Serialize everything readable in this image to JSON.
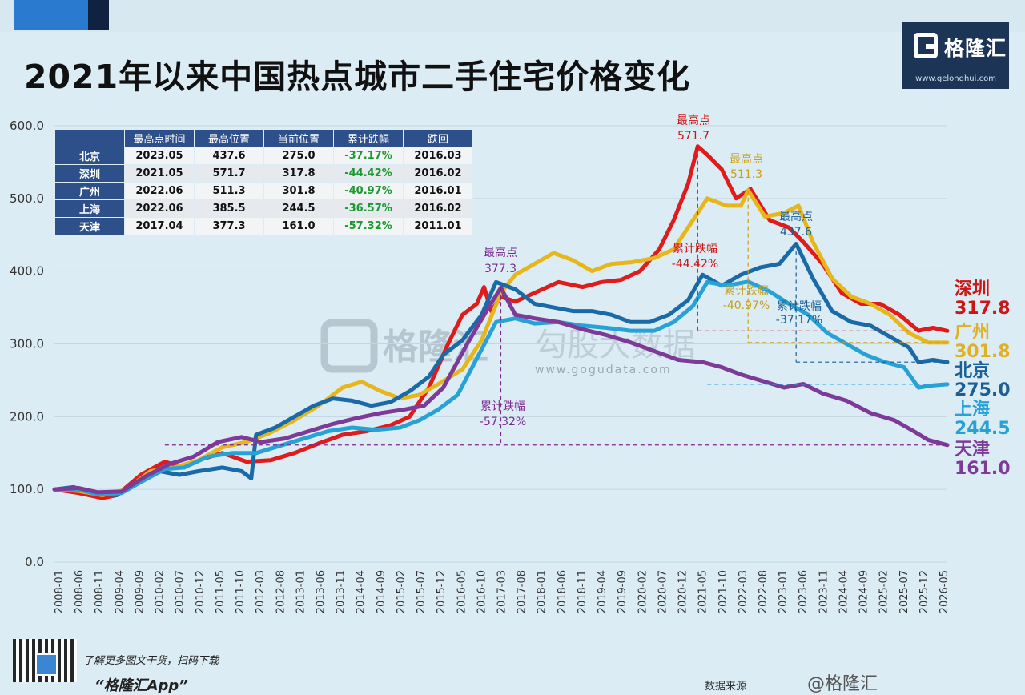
{
  "title": "2021年以来中国热点城市二手住宅价格变化",
  "logo": {
    "name": "格隆汇",
    "url": "www.gelonghui.com"
  },
  "watermark": {
    "text": "格隆汇",
    "sub": "勾股大数据",
    "url": "www.gogudata.com"
  },
  "footer": {
    "line1": "了解更多图文干货，扫码下载",
    "line2": "“格隆汇App”",
    "source": "数据来源",
    "handle": "@格隆汇"
  },
  "table": {
    "headers": [
      "",
      "最高点时间",
      "最高位置",
      "当前位置",
      "累计跌幅",
      "跌回"
    ],
    "rows": [
      [
        "北京",
        "2023.05",
        "437.6",
        "275.0",
        "-37.17%",
        "2016.03"
      ],
      [
        "深圳",
        "2021.05",
        "571.7",
        "317.8",
        "-44.42%",
        "2016.02"
      ],
      [
        "广州",
        "2022.06",
        "511.3",
        "301.8",
        "-40.97%",
        "2016.01"
      ],
      [
        "上海",
        "2022.06",
        "385.5",
        "244.5",
        "-36.57%",
        "2016.02"
      ],
      [
        "天津",
        "2017.04",
        "377.3",
        "161.0",
        "-57.32%",
        "2011.01"
      ]
    ]
  },
  "chart_data": {
    "type": "line",
    "ylim": [
      0,
      600
    ],
    "yticks": [
      "0.0",
      "100.0",
      "200.0",
      "300.0",
      "400.0",
      "500.0",
      "600.0"
    ],
    "xticks": [
      "2008-01",
      "2008-06",
      "2008-11",
      "2009-04",
      "2009-09",
      "2010-02",
      "2010-07",
      "2010-12",
      "2011-05",
      "2011-10",
      "2012-03",
      "2012-08",
      "2013-01",
      "2013-06",
      "2013-11",
      "2014-04",
      "2014-09",
      "2015-02",
      "2015-07",
      "2015-12",
      "2016-05",
      "2016-10",
      "2017-03",
      "2017-08",
      "2018-01",
      "2018-06",
      "2018-11",
      "2019-04",
      "2019-09",
      "2020-02",
      "2020-07",
      "2020-12",
      "2021-05",
      "2021-10",
      "2022-03",
      "2022-08",
      "2023-01",
      "2023-06",
      "2023-11",
      "2024-04",
      "2024-09",
      "2025-02",
      "2025-07",
      "2025-12",
      "2026-05"
    ],
    "series": [
      {
        "name": "深圳",
        "value_label": "317.8",
        "color": "#e01b1b",
        "points": [
          [
            2008.0,
            100
          ],
          [
            2008.5,
            95
          ],
          [
            2009.0,
            88
          ],
          [
            2009.3,
            92
          ],
          [
            2009.8,
            120
          ],
          [
            2010.3,
            138
          ],
          [
            2010.7,
            130
          ],
          [
            2011.0,
            140
          ],
          [
            2011.5,
            150
          ],
          [
            2012.0,
            138
          ],
          [
            2012.5,
            140
          ],
          [
            2013.0,
            150
          ],
          [
            2013.5,
            163
          ],
          [
            2014.0,
            175
          ],
          [
            2014.5,
            180
          ],
          [
            2015.0,
            188
          ],
          [
            2015.4,
            200
          ],
          [
            2015.8,
            240
          ],
          [
            2016.2,
            300
          ],
          [
            2016.5,
            340
          ],
          [
            2016.8,
            355
          ],
          [
            2016.95,
            378
          ],
          [
            2017.1,
            345
          ],
          [
            2017.3,
            365
          ],
          [
            2017.6,
            358
          ],
          [
            2018.0,
            370
          ],
          [
            2018.5,
            385
          ],
          [
            2019.0,
            378
          ],
          [
            2019.4,
            385
          ],
          [
            2019.8,
            388
          ],
          [
            2020.2,
            400
          ],
          [
            2020.6,
            430
          ],
          [
            2020.9,
            470
          ],
          [
            2021.2,
            520
          ],
          [
            2021.4,
            571.7
          ],
          [
            2021.6,
            560
          ],
          [
            2021.9,
            540
          ],
          [
            2022.2,
            500
          ],
          [
            2022.5,
            513
          ],
          [
            2022.9,
            470
          ],
          [
            2023.3,
            460
          ],
          [
            2023.6,
            440
          ],
          [
            2024.0,
            410
          ],
          [
            2024.4,
            370
          ],
          [
            2024.8,
            355
          ],
          [
            2025.2,
            355
          ],
          [
            2025.6,
            340
          ],
          [
            2026.0,
            318
          ],
          [
            2026.3,
            322
          ],
          [
            2026.6,
            317.8
          ]
        ]
      },
      {
        "name": "广州",
        "value_label": "301.8",
        "color": "#e6b61a",
        "points": [
          [
            2008.0,
            100
          ],
          [
            2008.5,
            98
          ],
          [
            2009.0,
            92
          ],
          [
            2009.5,
            100
          ],
          [
            2010.0,
            125
          ],
          [
            2010.5,
            130
          ],
          [
            2011.0,
            140
          ],
          [
            2011.5,
            158
          ],
          [
            2012.0,
            165
          ],
          [
            2012.5,
            178
          ],
          [
            2013.0,
            195
          ],
          [
            2013.5,
            215
          ],
          [
            2014.0,
            240
          ],
          [
            2014.4,
            248
          ],
          [
            2014.8,
            235
          ],
          [
            2015.2,
            225
          ],
          [
            2015.6,
            230
          ],
          [
            2016.0,
            245
          ],
          [
            2016.5,
            265
          ],
          [
            2016.9,
            305
          ],
          [
            2017.3,
            370
          ],
          [
            2017.6,
            395
          ],
          [
            2018.0,
            410
          ],
          [
            2018.4,
            425
          ],
          [
            2018.8,
            415
          ],
          [
            2019.2,
            400
          ],
          [
            2019.6,
            410
          ],
          [
            2020.0,
            412
          ],
          [
            2020.5,
            418
          ],
          [
            2020.9,
            430
          ],
          [
            2021.3,
            470
          ],
          [
            2021.6,
            500
          ],
          [
            2022.0,
            490
          ],
          [
            2022.3,
            490
          ],
          [
            2022.45,
            511.3
          ],
          [
            2022.8,
            475
          ],
          [
            2023.2,
            480
          ],
          [
            2023.5,
            490
          ],
          [
            2023.8,
            440
          ],
          [
            2024.2,
            390
          ],
          [
            2024.6,
            365
          ],
          [
            2025.0,
            355
          ],
          [
            2025.4,
            340
          ],
          [
            2025.8,
            315
          ],
          [
            2026.2,
            302
          ],
          [
            2026.6,
            301.8
          ]
        ]
      },
      {
        "name": "北京",
        "value_label": "275.0",
        "color": "#1a6aa8",
        "points": [
          [
            2008.0,
            100
          ],
          [
            2008.4,
            103
          ],
          [
            2008.8,
            95
          ],
          [
            2009.3,
            92
          ],
          [
            2009.7,
            110
          ],
          [
            2010.2,
            125
          ],
          [
            2010.6,
            120
          ],
          [
            2011.0,
            125
          ],
          [
            2011.5,
            130
          ],
          [
            2011.9,
            125
          ],
          [
            2012.1,
            115
          ],
          [
            2012.2,
            175
          ],
          [
            2012.6,
            185
          ],
          [
            2013.0,
            200
          ],
          [
            2013.4,
            215
          ],
          [
            2013.8,
            225
          ],
          [
            2014.2,
            222
          ],
          [
            2014.6,
            215
          ],
          [
            2015.0,
            220
          ],
          [
            2015.4,
            235
          ],
          [
            2015.8,
            255
          ],
          [
            2016.1,
            285
          ],
          [
            2016.5,
            305
          ],
          [
            2016.9,
            340
          ],
          [
            2017.2,
            385
          ],
          [
            2017.6,
            375
          ],
          [
            2018.0,
            355
          ],
          [
            2018.4,
            350
          ],
          [
            2018.8,
            345
          ],
          [
            2019.2,
            345
          ],
          [
            2019.6,
            340
          ],
          [
            2020.0,
            330
          ],
          [
            2020.4,
            330
          ],
          [
            2020.8,
            340
          ],
          [
            2021.2,
            360
          ],
          [
            2021.5,
            395
          ],
          [
            2021.9,
            380
          ],
          [
            2022.3,
            395
          ],
          [
            2022.7,
            405
          ],
          [
            2023.1,
            410
          ],
          [
            2023.45,
            437.6
          ],
          [
            2023.8,
            390
          ],
          [
            2024.2,
            345
          ],
          [
            2024.6,
            330
          ],
          [
            2025.0,
            325
          ],
          [
            2025.4,
            310
          ],
          [
            2025.8,
            295
          ],
          [
            2026.0,
            275
          ],
          [
            2026.3,
            278
          ],
          [
            2026.6,
            275.0
          ]
        ]
      },
      {
        "name": "上海",
        "value_label": "244.5",
        "color": "#27a2d6",
        "points": [
          [
            2008.0,
            100
          ],
          [
            2008.5,
            100
          ],
          [
            2008.9,
            93
          ],
          [
            2009.4,
            95
          ],
          [
            2009.8,
            110
          ],
          [
            2010.3,
            128
          ],
          [
            2010.7,
            130
          ],
          [
            2011.2,
            145
          ],
          [
            2011.7,
            150
          ],
          [
            2012.2,
            150
          ],
          [
            2012.7,
            160
          ],
          [
            2013.2,
            170
          ],
          [
            2013.7,
            180
          ],
          [
            2014.2,
            185
          ],
          [
            2014.7,
            182
          ],
          [
            2015.2,
            185
          ],
          [
            2015.6,
            195
          ],
          [
            2016.0,
            210
          ],
          [
            2016.4,
            230
          ],
          [
            2016.8,
            280
          ],
          [
            2017.2,
            330
          ],
          [
            2017.6,
            335
          ],
          [
            2018.0,
            328
          ],
          [
            2018.5,
            330
          ],
          [
            2019.0,
            325
          ],
          [
            2019.5,
            322
          ],
          [
            2020.0,
            318
          ],
          [
            2020.5,
            318
          ],
          [
            2020.9,
            330
          ],
          [
            2021.3,
            352
          ],
          [
            2021.6,
            385
          ],
          [
            2022.0,
            380
          ],
          [
            2022.45,
            385.5
          ],
          [
            2022.9,
            372
          ],
          [
            2023.3,
            355
          ],
          [
            2023.7,
            340
          ],
          [
            2024.1,
            315
          ],
          [
            2024.5,
            300
          ],
          [
            2024.9,
            285
          ],
          [
            2025.3,
            275
          ],
          [
            2025.7,
            268
          ],
          [
            2026.0,
            240
          ],
          [
            2026.3,
            243
          ],
          [
            2026.6,
            244.5
          ]
        ]
      },
      {
        "name": "天津",
        "value_label": "161.0",
        "color": "#7e3a98",
        "points": [
          [
            2008.0,
            100
          ],
          [
            2008.5,
            102
          ],
          [
            2008.9,
            96
          ],
          [
            2009.4,
            97
          ],
          [
            2009.9,
            118
          ],
          [
            2010.4,
            135
          ],
          [
            2010.9,
            145
          ],
          [
            2011.4,
            165
          ],
          [
            2011.9,
            172
          ],
          [
            2012.3,
            165
          ],
          [
            2012.8,
            170
          ],
          [
            2013.3,
            180
          ],
          [
            2013.8,
            190
          ],
          [
            2014.3,
            198
          ],
          [
            2014.8,
            205
          ],
          [
            2015.3,
            210
          ],
          [
            2015.7,
            215
          ],
          [
            2016.1,
            240
          ],
          [
            2016.6,
            300
          ],
          [
            2017.0,
            345
          ],
          [
            2017.3,
            377.3
          ],
          [
            2017.6,
            340
          ],
          [
            2018.0,
            335
          ],
          [
            2018.5,
            330
          ],
          [
            2019.0,
            320
          ],
          [
            2019.5,
            312
          ],
          [
            2020.0,
            302
          ],
          [
            2020.5,
            290
          ],
          [
            2021.0,
            278
          ],
          [
            2021.5,
            275
          ],
          [
            2021.9,
            268
          ],
          [
            2022.3,
            258
          ],
          [
            2022.8,
            248
          ],
          [
            2023.2,
            240
          ],
          [
            2023.6,
            245
          ],
          [
            2024.0,
            232
          ],
          [
            2024.5,
            222
          ],
          [
            2025.0,
            205
          ],
          [
            2025.5,
            195
          ],
          [
            2025.9,
            180
          ],
          [
            2026.2,
            168
          ],
          [
            2026.6,
            161.0
          ]
        ]
      }
    ],
    "annotations": [
      {
        "label": "最高点",
        "value": "571.7",
        "color": "#cc1515",
        "x": 2021.4,
        "y": 571.7
      },
      {
        "label": "最高点",
        "value": "511.3",
        "color": "#c9a018",
        "x": 2022.45,
        "y": 511.3
      },
      {
        "label": "最高点",
        "value": "437.6",
        "color": "#1a5f95",
        "x": 2023.45,
        "y": 437.6
      },
      {
        "label": "最高点",
        "value": "377.3",
        "color": "#7a2a8f",
        "x": 2017.3,
        "y": 377.3
      }
    ],
    "drops": [
      {
        "label": "累计跌幅",
        "value": "-44.42%",
        "color": "#cc1515"
      },
      {
        "label": "累计跌幅",
        "value": "-40.97%",
        "color": "#c9a018"
      },
      {
        "label": "累计跌幅",
        "value": "-37.17%",
        "color": "#1a5f95"
      },
      {
        "label": "累计跌幅",
        "value": "-57.32%",
        "color": "#7a2a8f"
      }
    ]
  }
}
